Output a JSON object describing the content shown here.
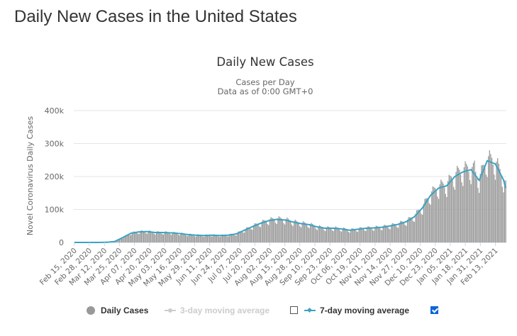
{
  "page": {
    "title": "Daily New Cases in the United States"
  },
  "chart_data": {
    "type": "bar",
    "title": "Daily New Cases",
    "subtitle_lines": [
      "Cases per Day",
      "Data as of 0:00 GMT+0"
    ],
    "ylabel": "Novel Coronavirus Daily Cases",
    "xlabel": "",
    "ylim": [
      0,
      400000
    ],
    "yticks": [
      0,
      100000,
      200000,
      300000,
      400000
    ],
    "ytick_labels": [
      "0",
      "100k",
      "200k",
      "300k",
      "400k"
    ],
    "start_date": "2020-02-15",
    "days": 374,
    "x_tick_labels": [
      "Feb 15, 2020",
      "Feb 28, 2020",
      "Mar 12, 2020",
      "Mar 25, 2020",
      "Apr 07, 2020",
      "Apr 20, 2020",
      "May 03, 2020",
      "May 16, 2020",
      "May 29, 2020",
      "Jun 11, 2020",
      "Jun 24, 2020",
      "Jul 07, 2020",
      "Jul 20, 2020",
      "Aug 02, 2020",
      "Aug 15, 2020",
      "Aug 28, 2020",
      "Sep 10, 2020",
      "Sep 23, 2020",
      "Oct 06, 2020",
      "Oct 19, 2020",
      "Nov 01, 2020",
      "Nov 14, 2020",
      "Nov 27, 2020",
      "Dec 10, 2020",
      "Dec 23, 2020",
      "Jan 05, 2021",
      "Jan 18, 2021",
      "Jan 31, 2021",
      "Feb 13, 2021"
    ],
    "x_tick_every_days": 13,
    "series": [
      {
        "name": "Daily Cases",
        "type": "bar",
        "color": "#999999",
        "visible": true
      },
      {
        "name": "3-day moving average",
        "type": "line",
        "color": "#cccccc",
        "visible": false
      },
      {
        "name": "7-day moving average",
        "type": "line",
        "color": "#3aa3c2",
        "visible": true,
        "weekly_days": [
          0,
          7,
          14,
          21,
          28,
          35,
          42,
          49,
          56,
          63,
          70,
          77,
          84,
          91,
          98,
          105,
          112,
          119,
          126,
          133,
          140,
          147,
          154,
          161,
          168,
          175,
          182,
          189,
          196,
          203,
          210,
          217,
          224,
          231,
          238,
          245,
          252,
          259,
          266,
          273,
          280,
          287,
          294,
          301,
          308,
          315,
          322,
          329,
          336,
          343,
          350,
          357,
          364,
          371,
          373
        ],
        "weekly_values": [
          0,
          0,
          0,
          0,
          500,
          3000,
          15000,
          28000,
          32000,
          33000,
          30000,
          30000,
          29000,
          27000,
          24000,
          22000,
          21000,
          22000,
          21000,
          22000,
          26000,
          37000,
          48000,
          58000,
          66000,
          70000,
          68000,
          62000,
          57000,
          54000,
          47000,
          43000,
          43000,
          41000,
          37000,
          40000,
          43000,
          44000,
          46000,
          50000,
          55000,
          63000,
          78000,
          105000,
          143000,
          165000,
          172000,
          200000,
          214000,
          221000,
          188000,
          248000,
          238000,
          190000,
          165000
        ]
      }
    ],
    "legend": {
      "items": [
        {
          "label": "Daily Cases",
          "checkbox": null
        },
        {
          "label": "3-day moving average",
          "checkbox": false
        },
        {
          "label": "7-day moving average",
          "checkbox": true
        }
      ]
    },
    "grid": true
  }
}
